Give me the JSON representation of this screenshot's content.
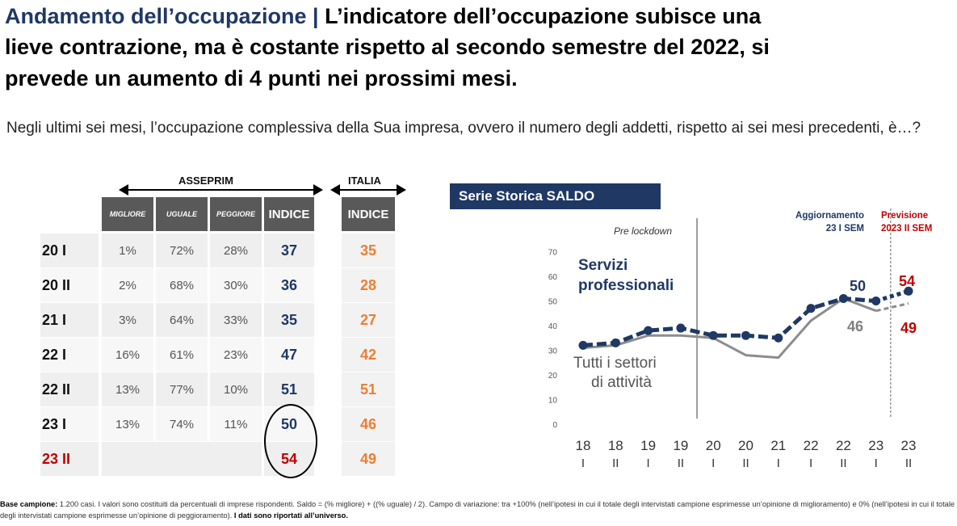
{
  "header": {
    "title_topic": "Andamento dell’occupazione",
    "title_sep": " | ",
    "title_line1_rest": "L’indicatore dell’occupazione subisce una",
    "title_line2": "lieve contrazione, ma è costante rispetto al secondo semestre del 2022, si",
    "title_line3": "prevede un aumento di 4 punti nei prossimi mesi."
  },
  "question": "Negli ultimi sei mesi, l’occupazione complessiva della Sua impresa, ovvero il numero degli addetti, rispetto ai sei mesi precedenti, è…?",
  "table": {
    "group_asseprim": "ASSEPRIM",
    "group_italia": "ITALIA",
    "columns": [
      "MIGLIORE",
      "UGUALE",
      "PEGGIORE",
      "INDICE"
    ],
    "italia_column": "INDICE",
    "rows": [
      {
        "period": "20 I",
        "migliore": "1%",
        "uguale": "72%",
        "peggiore": "28%",
        "indice": "37",
        "italia": "35"
      },
      {
        "period": "20 II",
        "migliore": "2%",
        "uguale": "68%",
        "peggiore": "30%",
        "indice": "36",
        "italia": "28"
      },
      {
        "period": "21 I",
        "migliore": "3%",
        "uguale": "64%",
        "peggiore": "33%",
        "indice": "35",
        "italia": "27"
      },
      {
        "period": "22 I",
        "migliore": "16%",
        "uguale": "61%",
        "peggiore": "23%",
        "indice": "47",
        "italia": "42"
      },
      {
        "period": "22 II",
        "migliore": "13%",
        "uguale": "77%",
        "peggiore": "10%",
        "indice": "51",
        "italia": "51"
      },
      {
        "period": "23 I",
        "migliore": "13%",
        "uguale": "74%",
        "peggiore": "11%",
        "indice": "50",
        "italia": "46"
      },
      {
        "period": "23 II",
        "migliore": "",
        "uguale": "",
        "peggiore": "",
        "indice": "54",
        "italia": "49"
      }
    ]
  },
  "chart_data": {
    "type": "line",
    "title": "Serie Storica SALDO",
    "x": [
      [
        "18",
        "I"
      ],
      [
        "18",
        "II"
      ],
      [
        "19",
        "I"
      ],
      [
        "19",
        "II"
      ],
      [
        "20",
        "I"
      ],
      [
        "20",
        "II"
      ],
      [
        "21",
        "I"
      ],
      [
        "22",
        "I"
      ],
      [
        "22",
        "II"
      ],
      [
        "23",
        "I"
      ],
      [
        "23",
        "II"
      ]
    ],
    "ylim": [
      0,
      70
    ],
    "yticks": [
      0,
      10,
      20,
      30,
      40,
      50,
      60,
      70
    ],
    "series": [
      {
        "name": "Servizi professionali",
        "color": "#1f3864",
        "values": [
          32,
          33,
          38,
          39,
          36,
          36,
          35,
          47,
          51,
          50,
          54
        ]
      },
      {
        "name": "Tutti i settori di attività",
        "color": "#8c8c8c",
        "values": [
          31,
          32,
          36,
          36,
          35,
          28,
          27,
          42,
          51,
          46,
          49
        ]
      }
    ],
    "series_labels": {
      "servizi_1": "Servizi",
      "servizi_2": "professionali",
      "tutti_1": "Tutti i settori",
      "tutti_2": "di attività"
    },
    "value_labels": {
      "servizi_23I": "50",
      "servizi_23II": "54",
      "tutti_23I": "46",
      "tutti_23II": "49"
    },
    "annotations": {
      "pre_lockdown": "Pre lockdown",
      "aggiornamento_1": "Aggiornamento",
      "aggiornamento_2": "23 I SEM",
      "previsione_1": "Previsione",
      "previsione_2": "2023 II SEM"
    }
  },
  "footnote": {
    "label": "Base campione:",
    "text": " 1.200 casi. I valori sono costituiti da percentuali di imprese rispondenti. Saldo = (% migliore) + ((% uguale) / 2). Campo di variazione: tra +100% (nell’ipotesi in cui il totale degli intervistati campione esprimesse un’opinione di miglioramento) e 0% (nell’ipotesi in cui il totale degli intervistati campione esprimesse un’opinione di peggioramento). ",
    "bold_tail": "I dati sono riportati all’universo."
  },
  "colors": {
    "navy": "#1f3864",
    "orange": "#ed7d31",
    "red": "#c00000",
    "gray": "#8c8c8c",
    "header_gray": "#595959"
  }
}
